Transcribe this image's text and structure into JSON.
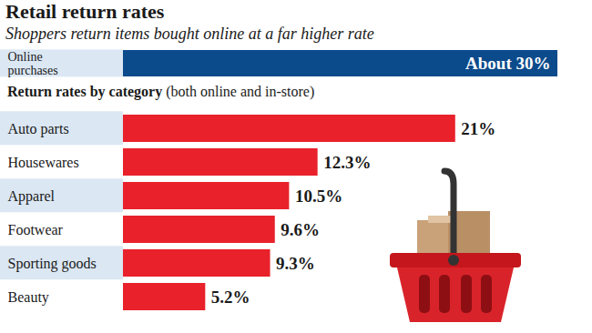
{
  "chart_data": [
    {
      "type": "bar",
      "title": "Retail return rates",
      "subtitle": "Shoppers return items bought online at a far higher rate",
      "orientation": "horizontal",
      "categories": [
        "Online purchases"
      ],
      "values": [
        30
      ],
      "value_labels": [
        "About 30%"
      ],
      "data_labels": true,
      "color": "#0b4a8b",
      "xlim": [
        0,
        30
      ],
      "tick_labels": "y"
    },
    {
      "type": "bar",
      "title": "Return rates by category (both online and in-store)",
      "orientation": "horizontal",
      "categories": [
        "Auto parts",
        "Housewares",
        "Apparel",
        "Footwear",
        "Sporting goods",
        "Beauty"
      ],
      "values": [
        21,
        12.3,
        10.5,
        9.6,
        9.3,
        5.2
      ],
      "value_labels": [
        "21%",
        "12.3%",
        "10.5%",
        "9.6%",
        "9.3%",
        "5.2%"
      ],
      "data_labels": true,
      "color": "#e8212b",
      "xlim": [
        0,
        27
      ],
      "tick_labels": "y"
    }
  ]
}
